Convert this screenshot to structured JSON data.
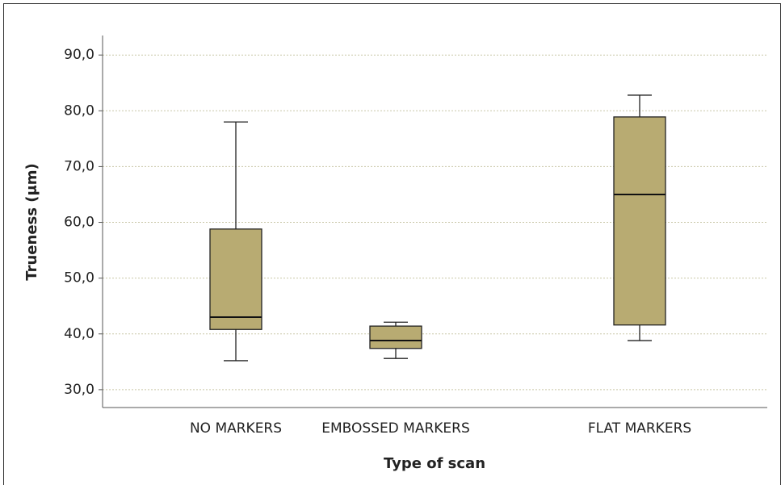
{
  "chart_data": {
    "type": "box",
    "y_label": "Trueness (μm)",
    "x_label": "Type of scan",
    "categories": [
      "NO MARKERS",
      "EMBOSSED MARKERS",
      "FLAT MARKERS"
    ],
    "boxes": [
      {
        "min": 35.2,
        "q1": 40.8,
        "median": 43.0,
        "q3": 58.8,
        "max": 78.0
      },
      {
        "min": 35.6,
        "q1": 37.4,
        "median": 38.8,
        "q3": 41.4,
        "max": 42.1
      },
      {
        "min": 38.8,
        "q1": 41.6,
        "median": 65.0,
        "q3": 78.9,
        "max": 82.8
      }
    ],
    "color": "#b8ab72",
    "ylim": [
      26.8,
      93.5
    ],
    "yticks": [
      {
        "value": 30,
        "label": "30,0"
      },
      {
        "value": 40,
        "label": "40,0"
      },
      {
        "value": 50,
        "label": "50,0"
      },
      {
        "value": 60,
        "label": "60,0"
      },
      {
        "value": 70,
        "label": "70,0"
      },
      {
        "value": 80,
        "label": "80,0"
      },
      {
        "value": 90,
        "label": "90,0"
      }
    ],
    "grid": true
  }
}
